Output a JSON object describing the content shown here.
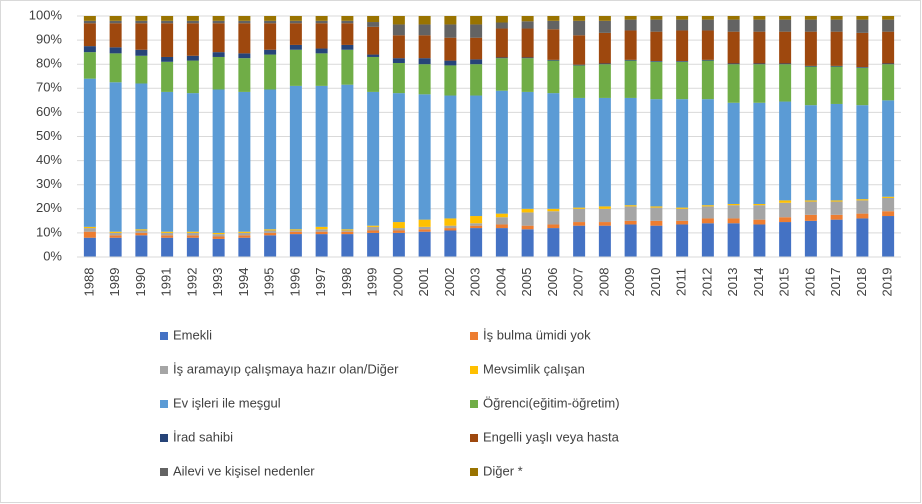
{
  "chart_data": {
    "type": "stacked_bar",
    "categories": [
      "1988",
      "1989",
      "1990",
      "1991",
      "1992",
      "1993",
      "1994",
      "1995",
      "1996",
      "1997",
      "1998",
      "1999",
      "2000",
      "2001",
      "2002",
      "2003",
      "2004",
      "2005",
      "2006",
      "2007",
      "2008",
      "2009",
      "2010",
      "2011",
      "2012",
      "2013",
      "2014",
      "2015",
      "2016",
      "2017",
      "2018",
      "2019"
    ],
    "ylim": [
      0,
      100
    ],
    "yticks": [
      {
        "value": 0,
        "label": "0%"
      },
      {
        "value": 10,
        "label": "10%"
      },
      {
        "value": 20,
        "label": "20%"
      },
      {
        "value": 30,
        "label": "30%"
      },
      {
        "value": 40,
        "label": "40%"
      },
      {
        "value": 50,
        "label": "50%"
      },
      {
        "value": 60,
        "label": "60%"
      },
      {
        "value": 70,
        "label": "70%"
      },
      {
        "value": 80,
        "label": "80%"
      },
      {
        "value": 90,
        "label": "90%"
      },
      {
        "value": 100,
        "label": "100%"
      }
    ],
    "grid": true,
    "series": [
      {
        "name": "Emekli",
        "color": "#4472c4",
        "values": [
          8,
          8,
          9,
          8,
          8,
          7.5,
          8,
          9,
          9.5,
          9.5,
          9.5,
          10,
          10,
          10.5,
          11,
          12,
          12,
          11.5,
          12,
          13,
          13,
          13.5,
          13,
          13.5,
          14,
          14,
          13.5,
          14.5,
          15,
          15.5,
          16,
          17
        ]
      },
      {
        "name": "İş bulma ümidi yok",
        "color": "#ed7d31",
        "values": [
          2.5,
          1,
          1,
          1,
          1,
          1,
          1,
          1,
          1,
          1,
          1,
          1,
          1,
          1,
          1,
          1,
          1.5,
          1.5,
          1.5,
          1.5,
          1.5,
          1.5,
          2,
          1.5,
          2,
          2,
          2,
          2,
          2.5,
          2,
          2,
          2
        ]
      },
      {
        "name": "İş aramayıp çalışmaya hazır olan/Diğer",
        "color": "#a5a5a5",
        "values": [
          1.5,
          1,
          1,
          1,
          1,
          1,
          1,
          1,
          0.5,
          1,
          0.5,
          1.5,
          1,
          1,
          1,
          1,
          3,
          5.5,
          5.5,
          5.5,
          5.5,
          6,
          5.5,
          5,
          5,
          5.5,
          6,
          6,
          5.5,
          5.5,
          5.5,
          5.5
        ]
      },
      {
        "name": "Mevsimlik çalışan",
        "color": "#ffc000",
        "values": [
          0.5,
          0.5,
          0.5,
          0.5,
          0.5,
          0.5,
          0.5,
          0.5,
          0.5,
          1,
          0.5,
          0.5,
          2.5,
          3,
          3,
          3,
          1.5,
          1.5,
          1,
          0.5,
          1,
          0.5,
          0.5,
          0.5,
          0.5,
          0.5,
          0.5,
          1,
          0.5,
          0.5,
          0.5,
          0.5
        ]
      },
      {
        "name": "Ev işleri ile meşgul",
        "color": "#5b9bd5",
        "values": [
          61.5,
          62,
          60.5,
          58,
          57.5,
          59.5,
          58,
          58,
          59.5,
          58.5,
          60,
          55.5,
          53.5,
          52,
          51,
          50,
          51,
          48.5,
          48,
          45.5,
          45,
          44.5,
          44.5,
          45,
          44,
          42,
          42,
          41,
          39.5,
          40,
          39,
          40
        ]
      },
      {
        "name": "Öğrenci(eğitim-öğretim)",
        "color": "#70ad47",
        "values": [
          11,
          12,
          11.5,
          12.5,
          13.5,
          13.5,
          14,
          14.5,
          15,
          13.5,
          14.5,
          14.5,
          12.5,
          12.5,
          12.5,
          13,
          13.5,
          14,
          13.5,
          13.5,
          14,
          15.5,
          15.5,
          15.5,
          16,
          16,
          16,
          15.5,
          16,
          15.5,
          15.5,
          15
        ]
      },
      {
        "name": "İrad sahibi",
        "color": "#264478",
        "values": [
          2.5,
          2.5,
          2.5,
          2,
          2,
          2,
          2,
          2,
          2,
          2,
          2,
          1,
          2,
          2.5,
          2,
          2,
          0.3,
          0.3,
          0.3,
          0.3,
          0.3,
          0.3,
          0.3,
          0.3,
          0.3,
          0.3,
          0.3,
          0.3,
          0.3,
          0.3,
          0.3,
          0.3
        ]
      },
      {
        "name": "Engelli yaşlı veya hasta",
        "color": "#9e480e",
        "values": [
          9.5,
          10,
          11,
          14,
          13.5,
          12,
          12.5,
          11,
          9,
          10.5,
          9,
          11.5,
          9.5,
          9.5,
          9.5,
          9,
          12,
          12,
          12.7,
          12.2,
          12.7,
          12.2,
          12.2,
          12.7,
          12.2,
          13.2,
          13.2,
          13.2,
          14.2,
          14.2,
          14.2,
          13.2
        ]
      },
      {
        "name": "Ailevi ve kişisel nedenler",
        "color": "#636363",
        "values": [
          1,
          1,
          1,
          1,
          1,
          1,
          1,
          1,
          1,
          1,
          1,
          2,
          4.5,
          4.5,
          5.5,
          5.5,
          2.5,
          3,
          3.5,
          6,
          5,
          4.5,
          5,
          4.5,
          4.5,
          5,
          5,
          5,
          5,
          5,
          5.5,
          5
        ]
      },
      {
        "name": "Diğer *",
        "color": "#997300",
        "values": [
          2,
          2,
          2,
          2,
          2,
          2,
          2,
          2,
          2,
          2,
          2,
          2.5,
          3.5,
          3.5,
          3.5,
          3.5,
          2.7,
          2.2,
          2,
          2,
          2,
          1.5,
          1.5,
          1.5,
          1.5,
          1.5,
          1.5,
          1.5,
          1.5,
          1.5,
          1.5,
          1.5
        ]
      }
    ]
  }
}
